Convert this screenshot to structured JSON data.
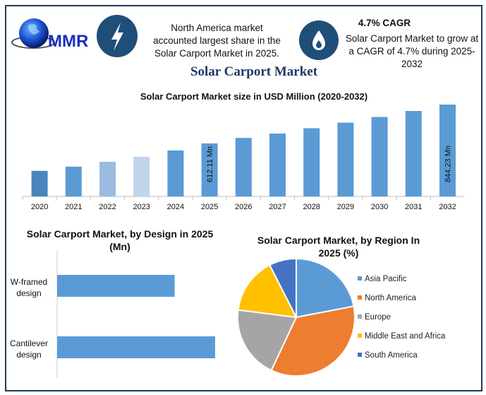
{
  "logo": {
    "text": "MMR"
  },
  "header": {
    "icon_left": "lightning-icon",
    "fact_left": [
      "North America market",
      "accounted largest share in the",
      "Solar Carport Market in 2025."
    ],
    "icon_right": "flame-icon",
    "cagr_title": "4.7% CAGR",
    "fact_right": [
      "Solar Carport Market to grow at",
      "a CAGR of 4.7% during 2025-",
      "2032"
    ],
    "title": "Solar Carport Market"
  },
  "colors": {
    "navy": "#1f3a5a",
    "bar": "#5b9bd5",
    "title": "#1f3864"
  },
  "chart_data": [
    {
      "type": "bar",
      "title": "Solar Carport Market size in USD Million (2020-2032)",
      "categories": [
        "2020",
        "2021",
        "2022",
        "2023",
        "2024",
        "2025",
        "2026",
        "2027",
        "2028",
        "2029",
        "2030",
        "2031",
        "2032"
      ],
      "values": [
        448,
        473,
        502,
        532,
        570,
        612.11,
        645,
        671,
        703,
        736,
        770,
        806,
        844.23
      ],
      "bar_colors": [
        "#4a86bd",
        "#5b9bd5",
        "#9bbbe0",
        "#c0d4ec",
        "#5b9bd5",
        "#5b9bd5",
        "#5b9bd5",
        "#5b9bd5",
        "#5b9bd5",
        "#5b9bd5",
        "#5b9bd5",
        "#5b9bd5",
        "#5b9bd5"
      ],
      "data_labels": {
        "2025": "612.11 Mn",
        "2032": "844.23 Mn"
      },
      "ylim": [
        295,
        860
      ],
      "grid": false
    },
    {
      "type": "bar",
      "orientation": "horizontal",
      "title": [
        "Solar Carport Market, by Design in 2025",
        "(Mn)"
      ],
      "categories": [
        [
          "W-framed",
          "design"
        ],
        [
          "Cantilever",
          "design"
        ]
      ],
      "values": [
        261,
        351
      ],
      "color": "#5b9bd5"
    },
    {
      "type": "pie",
      "title": [
        "Solar Carport Market, by Region In",
        "2025 (%)"
      ],
      "labels": [
        "Asia Pacific",
        "North America",
        "Europe",
        "Middle East and Africa",
        "South America"
      ],
      "values": [
        22,
        35,
        20,
        15.5,
        7.5
      ],
      "colors": [
        "#5b9bd5",
        "#ed7d31",
        "#a5a5a5",
        "#ffc000",
        "#4472c4"
      ],
      "legend": "right"
    }
  ]
}
